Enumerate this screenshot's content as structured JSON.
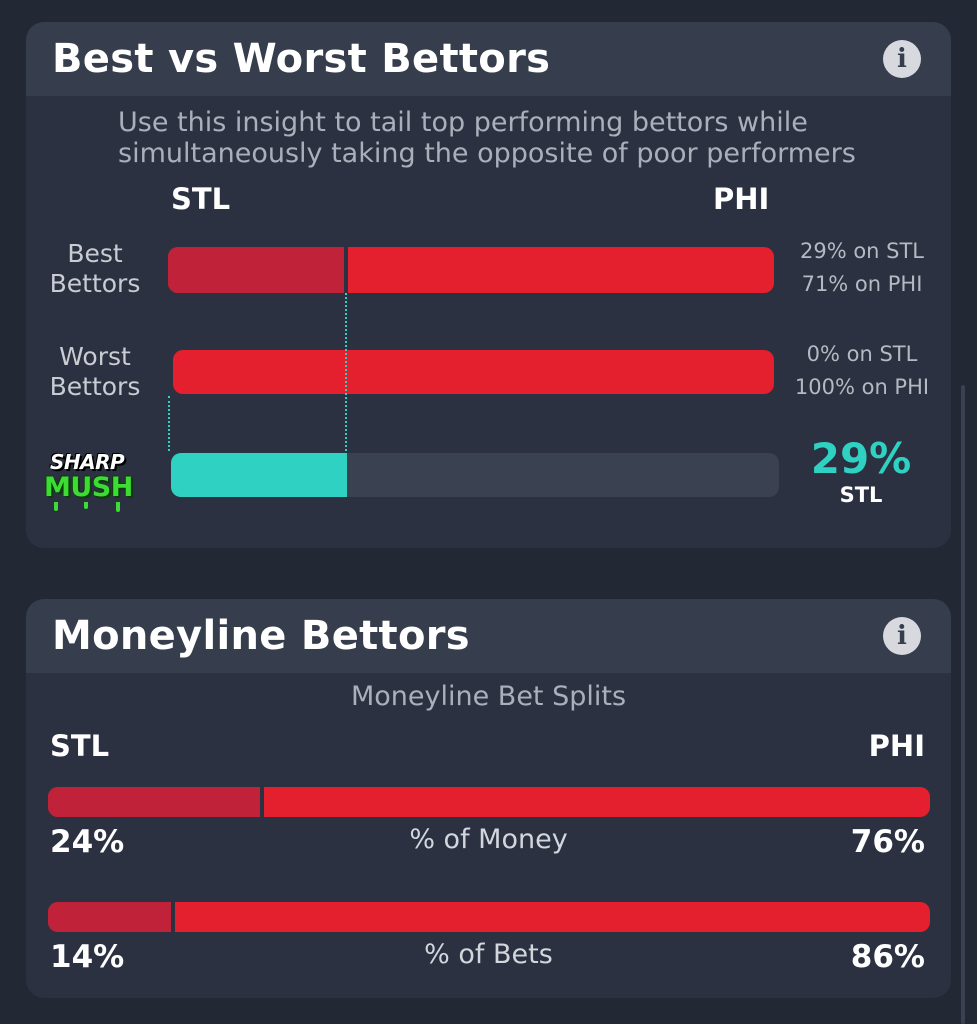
{
  "best_vs_worst": {
    "title": "Best vs Worst Bettors",
    "info_icon": "info-icon",
    "subtitle_line1": "Use this insight to tail top performing bettors while",
    "subtitle_line2": "simultaneously taking the opposite of poor performers",
    "team_left": "STL",
    "team_right": "PHI",
    "best": {
      "label_line1": "Best",
      "label_line2": "Bettors",
      "left_pct": 29,
      "left_text": "29% on STL",
      "right_text": "71% on PHI"
    },
    "worst": {
      "label_line1": "Worst",
      "label_line2": "Bettors",
      "left_pct": 0,
      "left_text": "0% on STL",
      "right_text": "100% on PHI"
    },
    "sharp_mush": {
      "logo_top": "SHARP",
      "logo_bottom": "MUSH",
      "pct_value": 29,
      "pct_text": "29%",
      "team": "STL"
    }
  },
  "moneyline": {
    "title": "Moneyline Bettors",
    "info_icon": "info-icon",
    "subtitle": "Moneyline Bet Splits",
    "team_left": "STL",
    "team_right": "PHI",
    "money": {
      "label": "% of Money",
      "left_pct": 24,
      "left_text": "24%",
      "right_text": "76%"
    },
    "bets": {
      "label": "% of Bets",
      "left_pct": 14,
      "left_text": "14%",
      "right_text": "86%"
    }
  },
  "colors": {
    "background": "#222834",
    "card": "#2b3140",
    "card_header": "#363d4c",
    "bar_left": "#c0223a",
    "bar_right": "#e5202e",
    "sharp_accent": "#2fd2c2",
    "logo_green": "#3ddc34"
  }
}
